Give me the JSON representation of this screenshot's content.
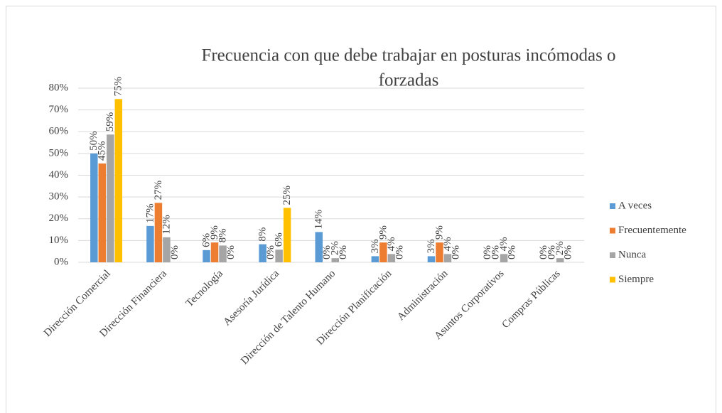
{
  "chart_data": {
    "type": "bar",
    "title": [
      "Frecuencia con que debe trabajar  en posturas incómodas o",
      "forzadas"
    ],
    "categories": [
      "Dirección Comercial",
      "Dirección Financiera",
      "Tecnología",
      "Asesoría Jurídica",
      "Dirección de Talento Humano",
      "Dirección Planificación",
      "Administración",
      "Asuntos Corporativos",
      "Compras Públicas"
    ],
    "series": [
      {
        "name": "A veces",
        "color": "#5b9bd5",
        "values": [
          50,
          16.7,
          5.6,
          8.3,
          13.9,
          2.8,
          2.8,
          0,
          0
        ],
        "value_labels": [
          "50%",
          "17%",
          "6%",
          "8%",
          "14%",
          "3%",
          "3%",
          "0%",
          "0%"
        ]
      },
      {
        "name": "Frecuentemente",
        "color": "#ed7d31",
        "values": [
          45.4,
          27.3,
          9.1,
          0,
          0,
          9.1,
          9.1,
          0,
          0
        ],
        "value_labels": [
          "45%",
          "27%",
          "9%",
          "0%",
          "0%",
          "9%",
          "9%",
          "0%",
          "0%"
        ]
      },
      {
        "name": "Nunca",
        "color": "#a5a5a5",
        "values": [
          58.7,
          11.5,
          7.7,
          5.8,
          1.9,
          3.8,
          3.8,
          3.8,
          1.9
        ],
        "value_labels": [
          "59%",
          "12%",
          "8%",
          "6%",
          "2%",
          "4%",
          "4%",
          "4%",
          "2%"
        ]
      },
      {
        "name": "Siempre",
        "color": "#ffc000",
        "values": [
          75,
          0,
          0,
          25,
          0,
          0,
          0,
          0,
          0
        ],
        "value_labels": [
          "75%",
          "0%",
          "0%",
          "25%",
          "0%",
          "0%",
          "0%",
          "0%",
          "0%"
        ]
      }
    ],
    "ylim": [
      0,
      80
    ],
    "yticks": [
      {
        "value": 0,
        "label": "0%"
      },
      {
        "value": 10,
        "label": "10%"
      },
      {
        "value": 20,
        "label": "20%"
      },
      {
        "value": 30,
        "label": "30%"
      },
      {
        "value": 40,
        "label": "40%"
      },
      {
        "value": 50,
        "label": "50%"
      },
      {
        "value": 60,
        "label": "60%"
      },
      {
        "value": 70,
        "label": "70%"
      },
      {
        "value": 80,
        "label": "80%"
      }
    ],
    "grid": true,
    "legend": "right"
  }
}
